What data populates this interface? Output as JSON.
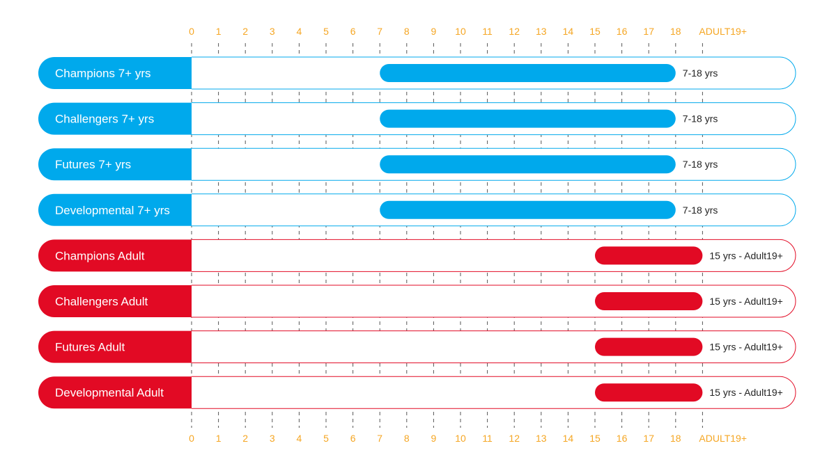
{
  "chart_data": {
    "type": "bar",
    "subtype": "horizontal-range",
    "axis": {
      "ticks": [
        "0",
        "1",
        "2",
        "3",
        "4",
        "5",
        "6",
        "7",
        "8",
        "9",
        "10",
        "11",
        "12",
        "13",
        "14",
        "15",
        "16",
        "17",
        "18",
        "ADULT19+"
      ],
      "positions": [
        "top",
        "bottom"
      ],
      "xlim": [
        0,
        19
      ],
      "grid": true,
      "gridline_style": "dashed"
    },
    "rows": [
      {
        "label": "Champions 7+ yrs",
        "start": 7,
        "end": 18,
        "range_label": "7-18 yrs",
        "group": "youth"
      },
      {
        "label": "Challengers 7+ yrs",
        "start": 7,
        "end": 18,
        "range_label": "7-18 yrs",
        "group": "youth"
      },
      {
        "label": "Futures 7+ yrs",
        "start": 7,
        "end": 18,
        "range_label": "7-18 yrs",
        "group": "youth"
      },
      {
        "label": "Developmental 7+ yrs",
        "start": 7,
        "end": 18,
        "range_label": "7-18 yrs",
        "group": "youth"
      },
      {
        "label": "Champions Adult",
        "start": 15,
        "end": 19,
        "range_label": "15 yrs - Adult19+",
        "group": "adult"
      },
      {
        "label": "Challengers Adult",
        "start": 15,
        "end": 19,
        "range_label": "15 yrs - Adult19+",
        "group": "adult"
      },
      {
        "label": "Futures Adult",
        "start": 15,
        "end": 19,
        "range_label": "15 yrs - Adult19+",
        "group": "adult"
      },
      {
        "label": "Developmental Adult",
        "start": 15,
        "end": 19,
        "range_label": "15 yrs - Adult19+",
        "group": "adult"
      }
    ],
    "colors": {
      "youth": "#00a9ec",
      "adult": "#e20a24",
      "tick_label": "#f5a623",
      "gridline": "#555555",
      "range_label": "#222222",
      "row_label": "#ffffff"
    }
  }
}
